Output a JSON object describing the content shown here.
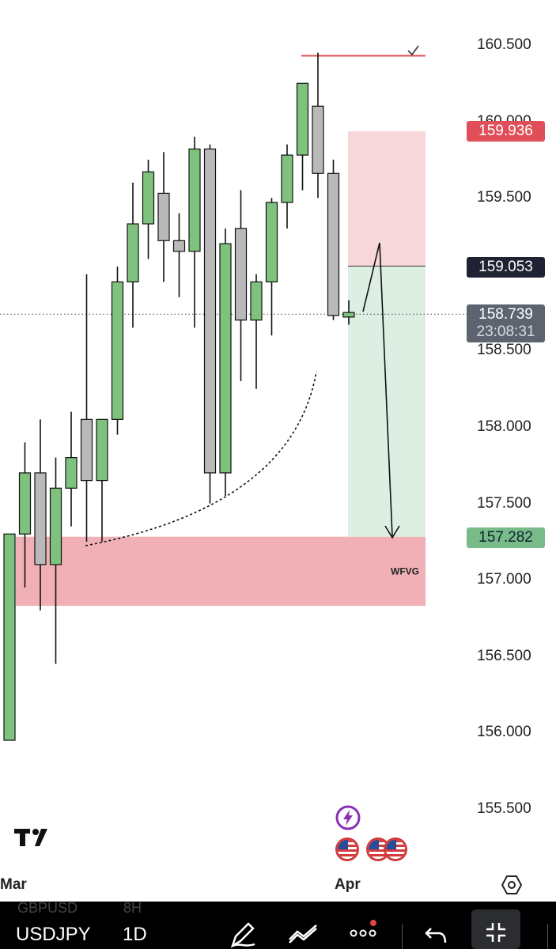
{
  "app": {
    "logo_text": "TV"
  },
  "colors": {
    "bull": "#7ec27e",
    "bear": "#b9b9b9",
    "wick": "#111111",
    "stop_zone": "#f7d7d9",
    "target_zone": "#ddefe2",
    "fvg_zone": "#f0b0b5",
    "stop_tag": "#e04f58",
    "entry_tag": "#1f2233",
    "target_tag": "#77bb88",
    "current_tag": "#5d6470"
  },
  "chart_data": {
    "type": "candlestick",
    "symbol": "USDJPY",
    "interval": "1D",
    "ylim": [
      155.25,
      160.75
    ],
    "y_ticks": [
      "160.500",
      "160.000",
      "159.500",
      "158.500",
      "158.000",
      "157.500",
      "157.000",
      "156.500",
      "156.000",
      "155.500"
    ],
    "x_labels": [
      "Mar",
      "Apr"
    ],
    "candles": [
      {
        "o": 155.95,
        "h": 157.3,
        "l": 155.95,
        "c": 157.3
      },
      {
        "o": 157.3,
        "h": 157.9,
        "l": 156.95,
        "c": 157.7
      },
      {
        "o": 157.7,
        "h": 158.05,
        "l": 156.8,
        "c": 157.1
      },
      {
        "o": 157.1,
        "h": 157.8,
        "l": 156.45,
        "c": 157.6
      },
      {
        "o": 157.6,
        "h": 158.1,
        "l": 157.35,
        "c": 157.8
      },
      {
        "o": 158.05,
        "h": 159.0,
        "l": 157.25,
        "c": 157.65
      },
      {
        "o": 157.65,
        "h": 158.05,
        "l": 157.25,
        "c": 158.05
      },
      {
        "o": 158.05,
        "h": 159.05,
        "l": 157.95,
        "c": 158.95
      },
      {
        "o": 158.95,
        "h": 159.6,
        "l": 158.65,
        "c": 159.33
      },
      {
        "o": 159.33,
        "h": 159.75,
        "l": 159.1,
        "c": 159.67
      },
      {
        "o": 159.53,
        "h": 159.8,
        "l": 158.95,
        "c": 159.22
      },
      {
        "o": 159.22,
        "h": 159.4,
        "l": 158.85,
        "c": 159.15
      },
      {
        "o": 159.15,
        "h": 159.9,
        "l": 158.65,
        "c": 159.82
      },
      {
        "o": 159.82,
        "h": 159.85,
        "l": 157.5,
        "c": 157.7
      },
      {
        "o": 157.7,
        "h": 159.3,
        "l": 157.55,
        "c": 159.2
      },
      {
        "o": 159.3,
        "h": 159.55,
        "l": 158.3,
        "c": 158.7
      },
      {
        "o": 158.7,
        "h": 159.0,
        "l": 158.25,
        "c": 158.95
      },
      {
        "o": 158.95,
        "h": 159.5,
        "l": 158.6,
        "c": 159.47
      },
      {
        "o": 159.47,
        "h": 159.85,
        "l": 159.3,
        "c": 159.78
      },
      {
        "o": 159.78,
        "h": 160.25,
        "l": 159.55,
        "c": 160.25
      },
      {
        "o": 160.1,
        "h": 160.45,
        "l": 159.5,
        "c": 159.66
      },
      {
        "o": 159.66,
        "h": 159.75,
        "l": 158.7,
        "c": 158.73
      },
      {
        "o": 158.72,
        "h": 158.83,
        "l": 158.67,
        "c": 158.75
      }
    ],
    "position": {
      "type": "short",
      "stop_price": "159.936",
      "entry_price": "159.053",
      "target_price": "157.282",
      "stop": 159.936,
      "entry": 159.053,
      "target": 157.282
    },
    "current_price": "158.739",
    "current_value": 158.739,
    "countdown": "23:08:31",
    "fvg": {
      "label": "WFVG",
      "top": 157.282,
      "bottom": 156.83
    },
    "high_line": 160.43
  },
  "toolbar": {
    "symbol": "USDJPY",
    "interval": "1D",
    "ghost_symbol": "GBPUSD",
    "ghost_interval": "8H"
  }
}
